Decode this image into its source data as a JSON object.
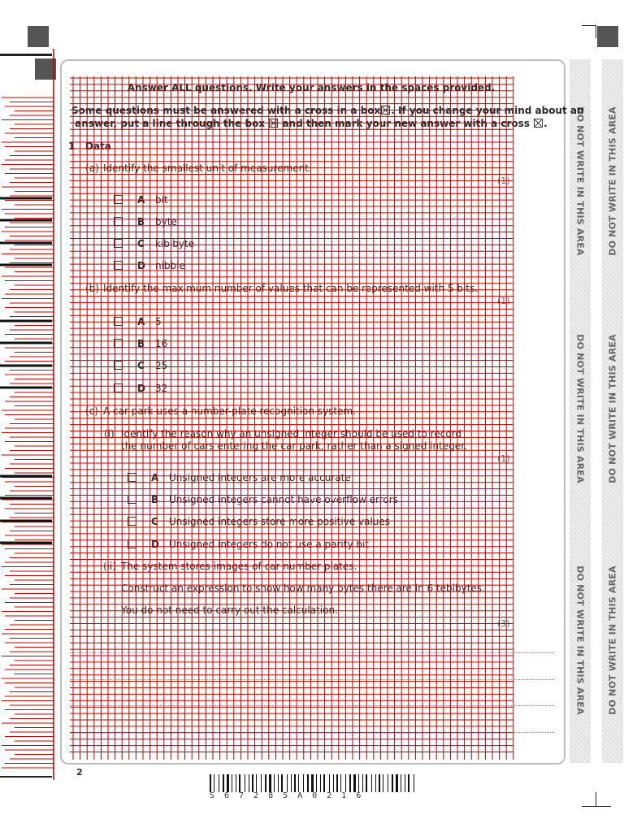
{
  "header": {
    "instruction_1": "Answer ALL questions. Write your answers in the spaces provided.",
    "instruction_2a": "Some questions must be answered with a cross in a box",
    "instruction_2b": ". If you change your mind about an",
    "instruction_3a": "answer, put a line through the box",
    "instruction_3b": "and then mark your new answer with a cross",
    "instruction_3c": "."
  },
  "question": {
    "number": "1",
    "title": "Data",
    "part_a": {
      "label": "(a)",
      "text": "Identify the smallest unit of measurement.",
      "marks": "(1)",
      "options": [
        {
          "letter": "A",
          "text": "bit"
        },
        {
          "letter": "B",
          "text": "byte"
        },
        {
          "letter": "C",
          "text": "kibibyte"
        },
        {
          "letter": "D",
          "text": "nibble"
        }
      ]
    },
    "part_b": {
      "label": "(b)",
      "text": "Identify the maximum number of values that can be represented with 5 bits.",
      "marks": "(1)",
      "options": [
        {
          "letter": "A",
          "text": "5"
        },
        {
          "letter": "B",
          "text": "16"
        },
        {
          "letter": "C",
          "text": "25"
        },
        {
          "letter": "D",
          "text": "32"
        }
      ]
    },
    "part_c": {
      "label": "(c)",
      "text": "A car park uses a number-plate recognition system.",
      "sub_i": {
        "label": "(i)",
        "line1": "Identify the reason why an unsigned integer should be used to record",
        "line2": "the number of cars entering the car park, rather than a signed integer.",
        "marks": "(1)",
        "options": [
          {
            "letter": "A",
            "text": "Unsigned integers are more accurate"
          },
          {
            "letter": "B",
            "text": "Unsigned integers cannot have overflow errors"
          },
          {
            "letter": "C",
            "text": "Unsigned integers store more positive values"
          },
          {
            "letter": "D",
            "text": "Unsigned integers do not use a parity bit"
          }
        ]
      },
      "sub_ii": {
        "label": "(ii)",
        "line1": "The system stores images of car number plates.",
        "line2": "Construct an expression to show how many bytes there are in 6 tebibytes.",
        "line3": "You do not need to carry out the calculation.",
        "marks": "(3)"
      }
    }
  },
  "side_strips": {
    "inner_text": "DO NOT WRITE IN THIS AREA",
    "outer_text": "DO NOT WRITE IN THIS AREA"
  },
  "footer": {
    "page_number": "2",
    "barcode_text": "S67285A0216"
  },
  "colors": {
    "grid": "#c00000",
    "panel_border": "#bdbdbd",
    "strip_bg": "#ececec"
  }
}
